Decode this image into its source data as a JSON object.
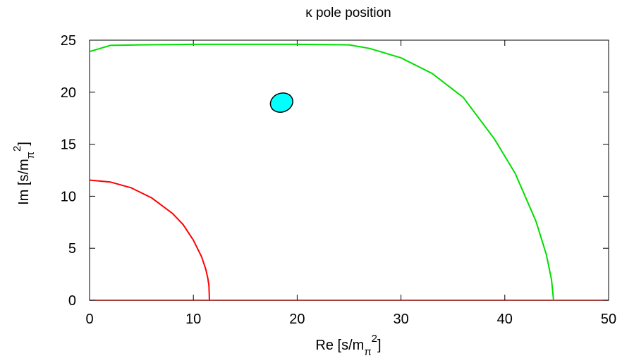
{
  "chart_data": {
    "type": "line",
    "title": "κ pole position",
    "xlabel": {
      "main": "Re [s/m",
      "sub": "π",
      "sup": "2",
      "close": "]"
    },
    "ylabel": {
      "main": "Im [s/m",
      "sub": "π",
      "sup": "2",
      "close": "]"
    },
    "xlim": [
      0,
      50
    ],
    "ylim": [
      0,
      25
    ],
    "xticks": [
      "0",
      "10",
      "20",
      "30",
      "40",
      "50"
    ],
    "yticks": [
      "0",
      "5",
      "10",
      "15",
      "20",
      "25"
    ],
    "xtick_values": [
      0,
      10,
      20,
      30,
      40,
      50
    ],
    "ytick_values": [
      0,
      5,
      10,
      15,
      20,
      25
    ],
    "grid": false,
    "legend": "none",
    "series": [
      {
        "color": "#ff0000",
        "kind": "curve",
        "x": [
          0,
          2,
          4,
          6,
          8,
          9,
          10,
          10.8,
          11.2,
          11.4,
          11.5,
          11.55
        ],
        "y": [
          11.55,
          11.37,
          10.81,
          9.83,
          8.33,
          7.29,
          5.78,
          4.16,
          2.96,
          2.08,
          1.4,
          0
        ]
      },
      {
        "color": "#00dd00",
        "kind": "curve",
        "x": [
          0,
          1,
          2,
          5,
          10,
          15,
          20,
          25,
          25.3,
          27,
          30,
          33,
          36,
          39,
          41,
          43,
          44,
          44.5,
          44.7
        ],
        "y": [
          23.9,
          24.2,
          24.5,
          24.55,
          24.6,
          24.6,
          24.6,
          24.55,
          24.5,
          24.2,
          23.3,
          21.8,
          19.5,
          15.5,
          12.2,
          7.6,
          4.4,
          2.0,
          0
        ]
      },
      {
        "color": "#00ffff",
        "kind": "region",
        "center": [
          18.5,
          19.0
        ],
        "radius": [
          1.1,
          0.9
        ],
        "angle_deg": -20
      }
    ]
  }
}
